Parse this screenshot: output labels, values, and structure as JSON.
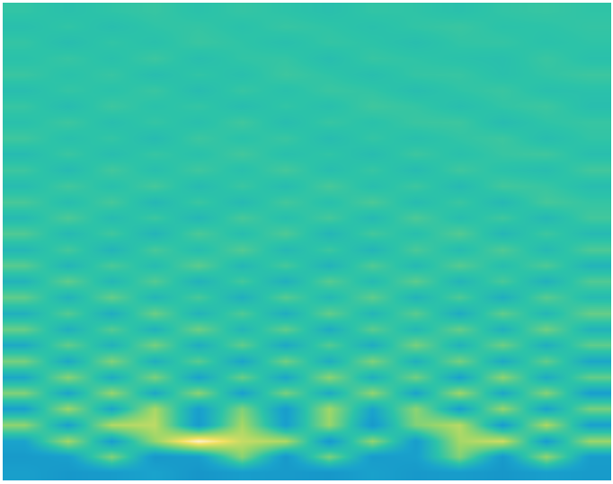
{
  "chart_data": {
    "type": "heatmap",
    "tick_labels": false,
    "zlim": [
      -1,
      1
    ],
    "cells": [
      [
        0.02,
        -0.03,
        0.01,
        0.04,
        -0.02,
        0.03,
        0.0,
        -0.04,
        0.02,
        0.01,
        -0.03,
        0.02,
        0.04,
        0.01
      ],
      [
        -0.04,
        0.02,
        -0.05,
        0.01,
        0.03,
        -0.02,
        0.04,
        0.01,
        -0.03,
        0.02,
        0.05,
        -0.01,
        0.0,
        0.03
      ],
      [
        0.03,
        -0.06,
        0.02,
        -0.03,
        0.05,
        0.01,
        -0.04,
        0.03,
        0.0,
        -0.05,
        0.02,
        0.03,
        -0.02,
        0.01
      ],
      [
        -0.02,
        0.04,
        -0.03,
        0.06,
        -0.05,
        0.02,
        0.03,
        -0.06,
        0.04,
        0.01,
        -0.02,
        -0.04,
        0.05,
        -0.03
      ],
      [
        0.05,
        -0.02,
        0.04,
        -0.06,
        0.02,
        -0.04,
        0.06,
        0.01,
        -0.05,
        0.03,
        0.04,
        -0.03,
        0.02,
        0.06
      ],
      [
        -0.06,
        0.03,
        -0.02,
        0.05,
        -0.07,
        0.04,
        -0.03,
        0.05,
        0.02,
        -0.06,
        0.01,
        0.05,
        -0.04,
        -0.02
      ],
      [
        0.04,
        -0.07,
        0.06,
        -0.02,
        0.03,
        -0.06,
        0.02,
        -0.04,
        0.07,
        0.03,
        -0.05,
        0.02,
        0.06,
        -0.05
      ],
      [
        -0.03,
        0.06,
        -0.05,
        0.03,
        -0.04,
        0.07,
        -0.06,
        0.04,
        -0.02,
        0.05,
        0.06,
        -0.07,
        0.01,
        0.04
      ],
      [
        0.07,
        -0.04,
        0.03,
        -0.08,
        0.06,
        -0.02,
        0.05,
        -0.07,
        0.03,
        -0.04,
        0.02,
        0.06,
        -0.06,
        0.02
      ],
      [
        -0.08,
        0.05,
        -0.06,
        0.04,
        -0.03,
        0.08,
        -0.04,
        0.02,
        -0.07,
        0.06,
        -0.03,
        0.04,
        0.07,
        -0.05
      ],
      [
        0.06,
        -0.09,
        0.08,
        -0.05,
        0.07,
        -0.04,
        0.09,
        -0.06,
        0.04,
        -0.08,
        0.07,
        -0.02,
        -0.06,
        0.08
      ],
      [
        -0.07,
        0.08,
        -0.04,
        0.09,
        -0.08,
        0.05,
        -0.07,
        0.1,
        -0.05,
        0.06,
        -0.09,
        0.08,
        0.04,
        -0.06
      ],
      [
        0.1,
        -0.06,
        0.09,
        -0.11,
        0.05,
        -0.09,
        0.08,
        -0.04,
        0.11,
        -0.07,
        0.05,
        -0.1,
        0.09,
        0.03
      ],
      [
        -0.09,
        0.12,
        -0.08,
        0.06,
        -0.12,
        0.1,
        -0.05,
        0.09,
        -0.1,
        0.12,
        -0.06,
        0.07,
        -0.11,
        0.08
      ],
      [
        0.13,
        -0.1,
        0.07,
        -0.14,
        0.11,
        -0.06,
        0.12,
        -0.13,
        0.08,
        -0.05,
        0.14,
        -0.12,
        0.06,
        -0.09
      ],
      [
        -0.12,
        0.09,
        -0.15,
        0.1,
        -0.07,
        0.14,
        -0.11,
        0.06,
        -0.14,
        0.11,
        -0.08,
        0.13,
        -0.1,
        0.12
      ],
      [
        0.16,
        -0.14,
        0.11,
        -0.08,
        0.17,
        -0.12,
        0.09,
        -0.16,
        0.13,
        -0.1,
        0.15,
        -0.06,
        0.12,
        -0.15
      ],
      [
        -0.15,
        0.18,
        -0.12,
        0.14,
        -0.16,
        0.08,
        -0.18,
        0.15,
        -0.09,
        0.17,
        -0.14,
        0.1,
        -0.17,
        0.13
      ],
      [
        0.19,
        -0.16,
        0.2,
        -0.13,
        0.1,
        -0.19,
        0.15,
        -0.11,
        0.18,
        -0.15,
        0.12,
        -0.2,
        0.16,
        -0.08
      ],
      [
        -0.18,
        0.14,
        -0.21,
        0.22,
        -0.15,
        0.12,
        -0.2,
        0.19,
        -0.13,
        0.16,
        -0.22,
        0.18,
        -0.12,
        0.21
      ],
      [
        0.22,
        -0.2,
        0.15,
        -0.18,
        0.24,
        -0.14,
        0.19,
        -0.23,
        0.17,
        -0.12,
        0.21,
        -0.19,
        0.25,
        -0.16
      ],
      [
        -0.24,
        0.19,
        -0.17,
        0.26,
        -0.21,
        0.18,
        -0.25,
        0.14,
        -0.22,
        0.27,
        -0.16,
        0.23,
        -0.2,
        0.18
      ],
      [
        0.27,
        -0.25,
        0.3,
        -0.19,
        0.16,
        -0.28,
        0.24,
        -0.21,
        0.29,
        -0.18,
        0.26,
        -0.24,
        0.19,
        -0.27
      ],
      [
        -0.26,
        0.33,
        -0.22,
        0.28,
        -0.3,
        0.21,
        -0.27,
        0.34,
        -0.19,
        0.25,
        -0.31,
        0.35,
        -0.23,
        0.2
      ],
      [
        0.31,
        -0.29,
        0.38,
        -0.26,
        0.34,
        -0.33,
        0.27,
        -0.24,
        0.36,
        -0.3,
        0.41,
        -0.27,
        0.32,
        -0.35
      ],
      [
        -0.33,
        0.4,
        -0.28,
        0.45,
        -0.36,
        0.3,
        -0.38,
        0.42,
        -0.29,
        0.35,
        -0.34,
        0.38,
        -0.31,
        0.27
      ],
      [
        0.36,
        -0.32,
        0.48,
        0.52,
        -0.4,
        0.44,
        -0.35,
        0.39,
        -0.42,
        0.31,
        0.5,
        -0.37,
        0.46,
        -0.33
      ],
      [
        -0.3,
        0.42,
        -0.35,
        0.38,
        0.95,
        0.55,
        0.47,
        -0.41,
        0.36,
        -0.38,
        0.44,
        0.58,
        -0.36,
        0.4
      ],
      [
        -0.42,
        -0.36,
        0.3,
        -0.45,
        -0.38,
        0.33,
        -0.44,
        0.28,
        -0.4,
        -0.35,
        0.31,
        -0.43,
        0.37,
        -0.39
      ],
      [
        -0.35,
        -0.45,
        -0.4,
        -0.3,
        -0.48,
        -0.38,
        -0.42,
        -0.46,
        -0.33,
        -0.44,
        -0.39,
        -0.47,
        -0.36,
        -0.41
      ]
    ]
  }
}
